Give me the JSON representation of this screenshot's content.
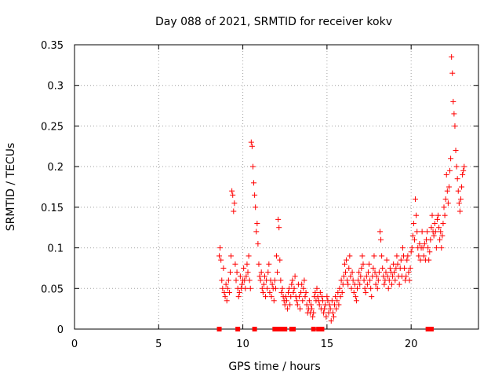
{
  "chart_data": {
    "type": "scatter",
    "title": "Day 088 of 2021, SRMTID for receiver kokv",
    "xlabel": "GPS time / hours",
    "ylabel": "SRMTID / TECUs",
    "xlim": [
      0,
      24
    ],
    "ylim": [
      0,
      0.35
    ],
    "xticks": [
      0,
      5,
      10,
      15,
      20
    ],
    "yticks": [
      0,
      0.05,
      0.1,
      0.15,
      0.2,
      0.25,
      0.3,
      0.35
    ],
    "xtick_labels": [
      "0",
      "5",
      "10",
      "15",
      "20"
    ],
    "ytick_labels": [
      "0",
      "0.05",
      "0.1",
      "0.15",
      "0.2",
      "0.25",
      "0.3",
      "0.35"
    ],
    "grid": true,
    "marker": "+",
    "color": "#ff0000",
    "series": [
      {
        "name": "SRMTID",
        "points": [
          [
            8.6,
            0.09
          ],
          [
            8.65,
            0.1
          ],
          [
            8.7,
            0.085
          ],
          [
            8.75,
            0.06
          ],
          [
            8.8,
            0.05
          ],
          [
            8.85,
            0.075
          ],
          [
            8.9,
            0.045
          ],
          [
            8.95,
            0.04
          ],
          [
            9.0,
            0.055
          ],
          [
            9.05,
            0.035
          ],
          [
            9.1,
            0.05
          ],
          [
            9.15,
            0.06
          ],
          [
            9.2,
            0.045
          ],
          [
            9.25,
            0.07
          ],
          [
            9.3,
            0.09
          ],
          [
            9.35,
            0.17
          ],
          [
            9.4,
            0.165
          ],
          [
            9.45,
            0.145
          ],
          [
            9.5,
            0.155
          ],
          [
            9.55,
            0.08
          ],
          [
            9.6,
            0.06
          ],
          [
            9.65,
            0.07
          ],
          [
            9.7,
            0.05
          ],
          [
            9.75,
            0.04
          ],
          [
            9.8,
            0.045
          ],
          [
            9.85,
            0.065
          ],
          [
            9.9,
            0.05
          ],
          [
            9.95,
            0.055
          ],
          [
            10.0,
            0.06
          ],
          [
            10.05,
            0.075
          ],
          [
            10.1,
            0.06
          ],
          [
            10.15,
            0.05
          ],
          [
            10.2,
            0.065
          ],
          [
            10.25,
            0.08
          ],
          [
            10.3,
            0.07
          ],
          [
            10.35,
            0.09
          ],
          [
            10.4,
            0.06
          ],
          [
            10.45,
            0.05
          ],
          [
            10.5,
            0.23
          ],
          [
            10.55,
            0.225
          ],
          [
            10.6,
            0.2
          ],
          [
            10.65,
            0.18
          ],
          [
            10.7,
            0.165
          ],
          [
            10.75,
            0.15
          ],
          [
            10.8,
            0.12
          ],
          [
            10.85,
            0.13
          ],
          [
            10.9,
            0.105
          ],
          [
            10.95,
            0.08
          ],
          [
            11.0,
            0.065
          ],
          [
            11.05,
            0.06
          ],
          [
            11.1,
            0.07
          ],
          [
            11.15,
            0.05
          ],
          [
            11.2,
            0.045
          ],
          [
            11.25,
            0.055
          ],
          [
            11.3,
            0.065
          ],
          [
            11.35,
            0.04
          ],
          [
            11.4,
            0.06
          ],
          [
            11.45,
            0.05
          ],
          [
            11.5,
            0.07
          ],
          [
            11.55,
            0.08
          ],
          [
            11.6,
            0.045
          ],
          [
            11.65,
            0.06
          ],
          [
            11.7,
            0.04
          ],
          [
            11.75,
            0.055
          ],
          [
            11.8,
            0.05
          ],
          [
            11.85,
            0.035
          ],
          [
            11.9,
            0.06
          ],
          [
            11.95,
            0.05
          ],
          [
            12.0,
            0.09
          ],
          [
            12.05,
            0.07
          ],
          [
            12.1,
            0.135
          ],
          [
            12.15,
            0.125
          ],
          [
            12.2,
            0.085
          ],
          [
            12.25,
            0.06
          ],
          [
            12.3,
            0.045
          ],
          [
            12.35,
            0.05
          ],
          [
            12.4,
            0.04
          ],
          [
            12.45,
            0.035
          ],
          [
            12.5,
            0.03
          ],
          [
            12.55,
            0.04
          ],
          [
            12.6,
            0.035
          ],
          [
            12.65,
            0.025
          ],
          [
            12.7,
            0.045
          ],
          [
            12.75,
            0.05
          ],
          [
            12.8,
            0.03
          ],
          [
            12.85,
            0.04
          ],
          [
            12.9,
            0.055
          ],
          [
            12.95,
            0.06
          ],
          [
            13.0,
            0.045
          ],
          [
            13.05,
            0.05
          ],
          [
            13.1,
            0.065
          ],
          [
            13.15,
            0.04
          ],
          [
            13.2,
            0.035
          ],
          [
            13.25,
            0.03
          ],
          [
            13.3,
            0.055
          ],
          [
            13.35,
            0.04
          ],
          [
            13.4,
            0.025
          ],
          [
            13.45,
            0.045
          ],
          [
            13.5,
            0.055
          ],
          [
            13.55,
            0.035
          ],
          [
            13.6,
            0.05
          ],
          [
            13.65,
            0.06
          ],
          [
            13.7,
            0.04
          ],
          [
            13.75,
            0.045
          ],
          [
            13.8,
            0.03
          ],
          [
            13.85,
            0.02
          ],
          [
            13.9,
            0.025
          ],
          [
            13.95,
            0.035
          ],
          [
            14.0,
            0.02
          ],
          [
            14.05,
            0.03
          ],
          [
            14.1,
            0.025
          ],
          [
            14.15,
            0.015
          ],
          [
            14.2,
            0.02
          ],
          [
            14.25,
            0.04
          ],
          [
            14.3,
            0.045
          ],
          [
            14.35,
            0.035
          ],
          [
            14.4,
            0.05
          ],
          [
            14.45,
            0.04
          ],
          [
            14.5,
            0.035
          ],
          [
            14.55,
            0.03
          ],
          [
            14.6,
            0.045
          ],
          [
            14.65,
            0.025
          ],
          [
            14.7,
            0.04
          ],
          [
            14.75,
            0.035
          ],
          [
            14.8,
            0.02
          ],
          [
            14.85,
            0.025
          ],
          [
            14.9,
            0.03
          ],
          [
            14.95,
            0.015
          ],
          [
            15.0,
            0.04
          ],
          [
            15.05,
            0.035
          ],
          [
            15.1,
            0.02
          ],
          [
            15.15,
            0.03
          ],
          [
            15.2,
            0.025
          ],
          [
            15.25,
            0.01
          ],
          [
            15.3,
            0.035
          ],
          [
            15.35,
            0.02
          ],
          [
            15.4,
            0.015
          ],
          [
            15.45,
            0.03
          ],
          [
            15.5,
            0.04
          ],
          [
            15.55,
            0.025
          ],
          [
            15.6,
            0.035
          ],
          [
            15.65,
            0.045
          ],
          [
            15.7,
            0.03
          ],
          [
            15.75,
            0.05
          ],
          [
            15.8,
            0.04
          ],
          [
            15.85,
            0.06
          ],
          [
            15.9,
            0.045
          ],
          [
            15.95,
            0.055
          ],
          [
            16.0,
            0.065
          ],
          [
            16.05,
            0.08
          ],
          [
            16.1,
            0.07
          ],
          [
            16.15,
            0.085
          ],
          [
            16.2,
            0.06
          ],
          [
            16.25,
            0.055
          ],
          [
            16.3,
            0.075
          ],
          [
            16.35,
            0.09
          ],
          [
            16.4,
            0.065
          ],
          [
            16.45,
            0.05
          ],
          [
            16.5,
            0.07
          ],
          [
            16.55,
            0.06
          ],
          [
            16.6,
            0.045
          ],
          [
            16.65,
            0.055
          ],
          [
            16.7,
            0.04
          ],
          [
            16.75,
            0.035
          ],
          [
            16.8,
            0.05
          ],
          [
            16.85,
            0.06
          ],
          [
            16.9,
            0.07
          ],
          [
            16.95,
            0.055
          ],
          [
            17.0,
            0.065
          ],
          [
            17.05,
            0.075
          ],
          [
            17.1,
            0.09
          ],
          [
            17.15,
            0.08
          ],
          [
            17.2,
            0.06
          ],
          [
            17.25,
            0.05
          ],
          [
            17.3,
            0.045
          ],
          [
            17.35,
            0.065
          ],
          [
            17.4,
            0.055
          ],
          [
            17.45,
            0.07
          ],
          [
            17.5,
            0.08
          ],
          [
            17.55,
            0.06
          ],
          [
            17.6,
            0.05
          ],
          [
            17.65,
            0.04
          ],
          [
            17.7,
            0.065
          ],
          [
            17.75,
            0.075
          ],
          [
            17.8,
            0.09
          ],
          [
            17.85,
            0.07
          ],
          [
            17.9,
            0.055
          ],
          [
            17.95,
            0.065
          ],
          [
            18.0,
            0.05
          ],
          [
            18.05,
            0.06
          ],
          [
            18.1,
            0.07
          ],
          [
            18.15,
            0.12
          ],
          [
            18.2,
            0.11
          ],
          [
            18.25,
            0.09
          ],
          [
            18.3,
            0.075
          ],
          [
            18.35,
            0.065
          ],
          [
            18.4,
            0.055
          ],
          [
            18.45,
            0.06
          ],
          [
            18.5,
            0.07
          ],
          [
            18.55,
            0.085
          ],
          [
            18.6,
            0.065
          ],
          [
            18.65,
            0.05
          ],
          [
            18.7,
            0.06
          ],
          [
            18.75,
            0.075
          ],
          [
            18.8,
            0.07
          ],
          [
            18.85,
            0.055
          ],
          [
            18.9,
            0.065
          ],
          [
            18.95,
            0.08
          ],
          [
            19.0,
            0.07
          ],
          [
            19.05,
            0.06
          ],
          [
            19.1,
            0.075
          ],
          [
            19.15,
            0.09
          ],
          [
            19.2,
            0.08
          ],
          [
            19.25,
            0.065
          ],
          [
            19.3,
            0.055
          ],
          [
            19.35,
            0.075
          ],
          [
            19.4,
            0.085
          ],
          [
            19.45,
            0.065
          ],
          [
            19.5,
            0.1
          ],
          [
            19.55,
            0.09
          ],
          [
            19.6,
            0.075
          ],
          [
            19.65,
            0.06
          ],
          [
            19.7,
            0.065
          ],
          [
            19.75,
            0.085
          ],
          [
            19.8,
            0.09
          ],
          [
            19.85,
            0.07
          ],
          [
            19.9,
            0.06
          ],
          [
            19.95,
            0.075
          ],
          [
            20.0,
            0.095
          ],
          [
            20.05,
            0.1
          ],
          [
            20.1,
            0.115
          ],
          [
            20.15,
            0.13
          ],
          [
            20.2,
            0.11
          ],
          [
            20.25,
            0.16
          ],
          [
            20.3,
            0.14
          ],
          [
            20.35,
            0.12
          ],
          [
            20.4,
            0.1
          ],
          [
            20.45,
            0.09
          ],
          [
            20.5,
            0.105
          ],
          [
            20.55,
            0.085
          ],
          [
            20.6,
            0.1
          ],
          [
            20.65,
            0.12
          ],
          [
            20.7,
            0.1
          ],
          [
            20.75,
            0.09
          ],
          [
            20.8,
            0.105
          ],
          [
            20.85,
            0.085
          ],
          [
            20.9,
            0.11
          ],
          [
            20.95,
            0.12
          ],
          [
            21.0,
            0.1
          ],
          [
            21.05,
            0.085
          ],
          [
            21.1,
            0.095
          ],
          [
            21.15,
            0.11
          ],
          [
            21.2,
            0.125
          ],
          [
            21.25,
            0.14
          ],
          [
            21.3,
            0.12
          ],
          [
            21.35,
            0.115
          ],
          [
            21.4,
            0.13
          ],
          [
            21.45,
            0.12
          ],
          [
            21.5,
            0.1
          ],
          [
            21.55,
            0.135
          ],
          [
            21.6,
            0.14
          ],
          [
            21.65,
            0.125
          ],
          [
            21.7,
            0.11
          ],
          [
            21.75,
            0.12
          ],
          [
            21.8,
            0.1
          ],
          [
            21.85,
            0.115
          ],
          [
            21.9,
            0.13
          ],
          [
            21.95,
            0.15
          ],
          [
            22.0,
            0.14
          ],
          [
            22.05,
            0.16
          ],
          [
            22.1,
            0.19
          ],
          [
            22.15,
            0.17
          ],
          [
            22.2,
            0.155
          ],
          [
            22.25,
            0.175
          ],
          [
            22.3,
            0.195
          ],
          [
            22.35,
            0.21
          ],
          [
            22.4,
            0.335
          ],
          [
            22.45,
            0.315
          ],
          [
            22.5,
            0.28
          ],
          [
            22.55,
            0.265
          ],
          [
            22.6,
            0.25
          ],
          [
            22.65,
            0.22
          ],
          [
            22.7,
            0.2
          ],
          [
            22.75,
            0.185
          ],
          [
            22.8,
            0.17
          ],
          [
            22.85,
            0.155
          ],
          [
            22.9,
            0.145
          ],
          [
            22.95,
            0.16
          ],
          [
            23.0,
            0.175
          ],
          [
            23.05,
            0.19
          ],
          [
            23.1,
            0.195
          ],
          [
            23.15,
            0.2
          ]
        ]
      },
      {
        "name": "zero-level markers",
        "marker": "square",
        "x": [
          8.6,
          9.7,
          10.7,
          11.9,
          12.0,
          12.1,
          12.3,
          12.5,
          12.9,
          13.0,
          14.2,
          14.5,
          14.7,
          21.0,
          21.1,
          21.2
        ],
        "y": [
          0,
          0,
          0,
          0,
          0,
          0,
          0,
          0,
          0,
          0,
          0,
          0,
          0,
          0,
          0,
          0
        ]
      }
    ]
  }
}
